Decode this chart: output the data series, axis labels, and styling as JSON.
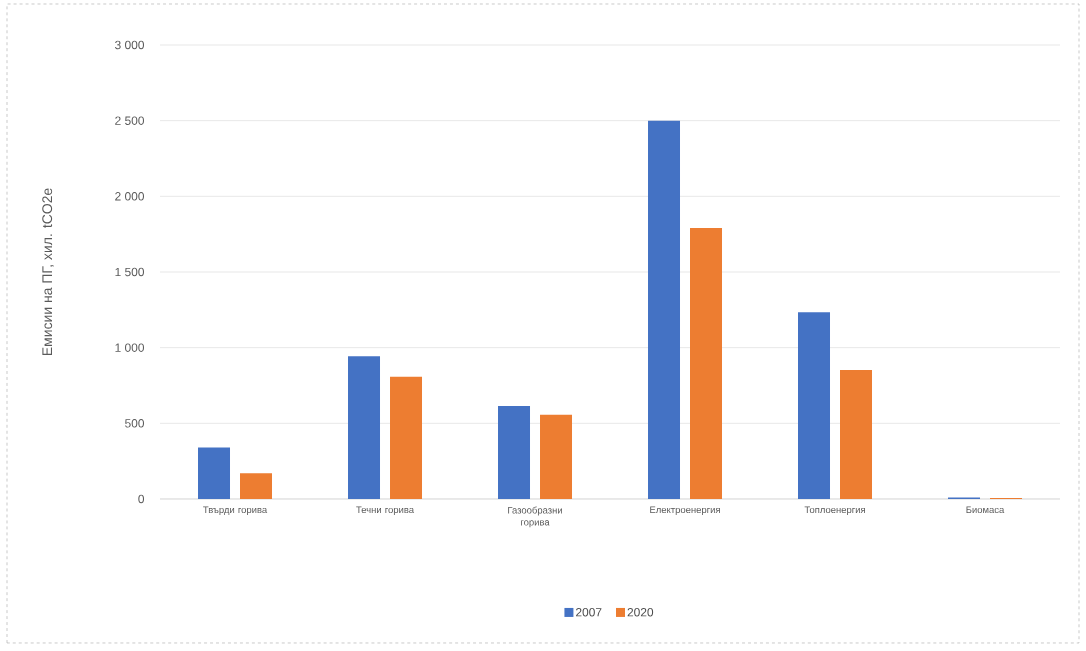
{
  "chart_data": {
    "type": "bar",
    "ylabel": "Емисии на  ПГ, хил. tCO2e",
    "categories": [
      "Твърди горива",
      "Течни горива",
      "Газообразни горива",
      "Електроенергия",
      "Топлоенергия",
      "Биомаса"
    ],
    "series": [
      {
        "name": "2007",
        "color": "#4472c4",
        "values": [
          341,
          943,
          614,
          2500,
          1234,
          9
        ]
      },
      {
        "name": "2020",
        "color": "#ed7d31",
        "values": [
          170,
          807,
          557,
          1791,
          852,
          7
        ]
      }
    ],
    "ylim": [
      0,
      3000
    ],
    "yticks": [
      {
        "value": 0,
        "label": "0"
      },
      {
        "value": 500,
        "label": "500"
      },
      {
        "value": 1000,
        "label": "1 000"
      },
      {
        "value": 1500,
        "label": "1 500"
      },
      {
        "value": 2000,
        "label": "2 000"
      },
      {
        "value": 2500,
        "label": "2 500"
      },
      {
        "value": 3000,
        "label": "3 000"
      }
    ],
    "grid": "y",
    "legend": "bottom"
  }
}
